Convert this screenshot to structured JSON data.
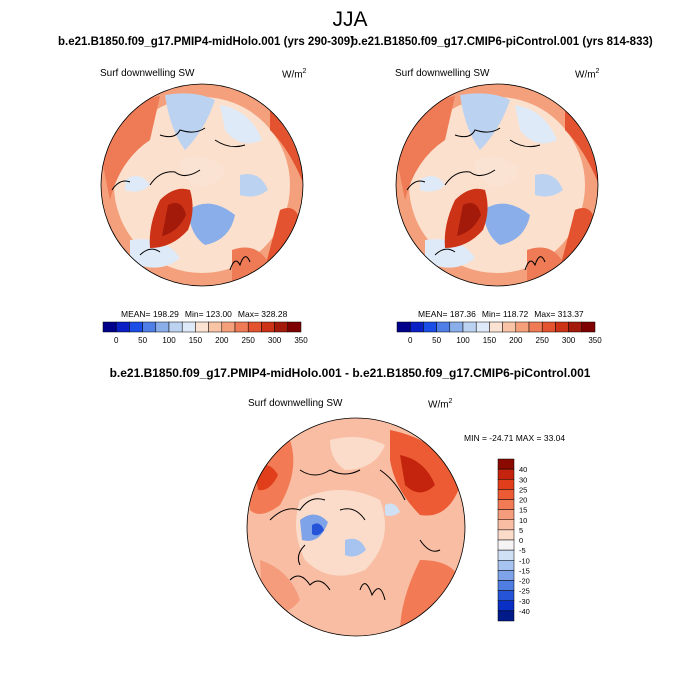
{
  "title": "JJA",
  "subtitles": {
    "left": "b.e21.B1850.f09_g17.PMIP4-midHolo.001 (yrs 290-309)",
    "right": "b.e21.B1850.f09_g17.CMIP6-piControl.001 (yrs 814-833)",
    "diff": "b.e21.B1850.f09_g17.PMIP4-midHolo.001 - b.e21.B1850.f09_g17.CMIP6-piControl.001"
  },
  "panels": [
    {
      "variable": "Surf downwelling SW",
      "unit_base": "W/m",
      "unit_exp": "2",
      "stats": {
        "mean": "MEAN= 198.29",
        "min": "Min= 123.00",
        "max": "Max= 328.28"
      }
    },
    {
      "variable": "Surf downwelling SW",
      "unit_base": "W/m",
      "unit_exp": "2",
      "stats": {
        "mean": "MEAN= 187.36",
        "min": "Min= 118.72",
        "max": "Max= 313.37"
      }
    },
    {
      "variable": "Surf downwelling SW",
      "unit_base": "W/m",
      "unit_exp": "2",
      "stats": {
        "minmax": "MIN = -24.71  MAX =  33.04"
      }
    }
  ],
  "colorbars": {
    "absolute": {
      "labels": [
        "0",
        "50",
        "100",
        "150",
        "200",
        "250",
        "300",
        "350"
      ],
      "colors": [
        "#00008b",
        "#0a1fc4",
        "#1b4ee6",
        "#4f7fe6",
        "#8aaee9",
        "#bcd2f1",
        "#dfeaf8",
        "#fbe3d3",
        "#f9c4a6",
        "#f5a07a",
        "#ee7a56",
        "#e4532f",
        "#cb3216",
        "#a31a0a",
        "#7f0000"
      ]
    },
    "diff": {
      "labels": [
        "40",
        "30",
        "25",
        "20",
        "15",
        "10",
        "5",
        "0",
        "-5",
        "-10",
        "-15",
        "-20",
        "-25",
        "-30",
        "-40"
      ],
      "colors_top_to_bottom": [
        "#8b0a00",
        "#c4240d",
        "#e13f1c",
        "#ec5b33",
        "#f27b55",
        "#f59c7c",
        "#f8bda3",
        "#fbdcca",
        "#f5f3f3",
        "#cfe0f5",
        "#a7c3ef",
        "#7fa3e8",
        "#4f7de2",
        "#2554d8",
        "#0a2fc5",
        "#001a8a"
      ]
    }
  },
  "chart_data": [
    {
      "type": "heatmap",
      "title": "Surf downwelling SW",
      "units": "W/m^2",
      "season": "JJA",
      "projection": "north polar stereographic",
      "case": "b.e21.B1850.f09_g17.PMIP4-midHolo.001 (yrs 290-309)",
      "mean": 198.29,
      "min": 123.0,
      "max": 328.28,
      "levels": [
        0,
        50,
        100,
        150,
        200,
        250,
        300,
        350
      ]
    },
    {
      "type": "heatmap",
      "title": "Surf downwelling SW",
      "units": "W/m^2",
      "season": "JJA",
      "projection": "north polar stereographic",
      "case": "b.e21.B1850.f09_g17.CMIP6-piControl.001 (yrs 814-833)",
      "mean": 187.36,
      "min": 118.72,
      "max": 313.37,
      "levels": [
        0,
        50,
        100,
        150,
        200,
        250,
        300,
        350
      ]
    },
    {
      "type": "heatmap",
      "title": "Surf downwelling SW",
      "units": "W/m^2",
      "season": "JJA",
      "projection": "north polar stereographic",
      "case": "b.e21.B1850.f09_g17.PMIP4-midHolo.001 - b.e21.B1850.f09_g17.CMIP6-piControl.001",
      "min": -24.71,
      "max": 33.04,
      "levels": [
        -40,
        -30,
        -25,
        -20,
        -15,
        -10,
        -5,
        0,
        5,
        10,
        15,
        20,
        25,
        30,
        40
      ]
    }
  ]
}
